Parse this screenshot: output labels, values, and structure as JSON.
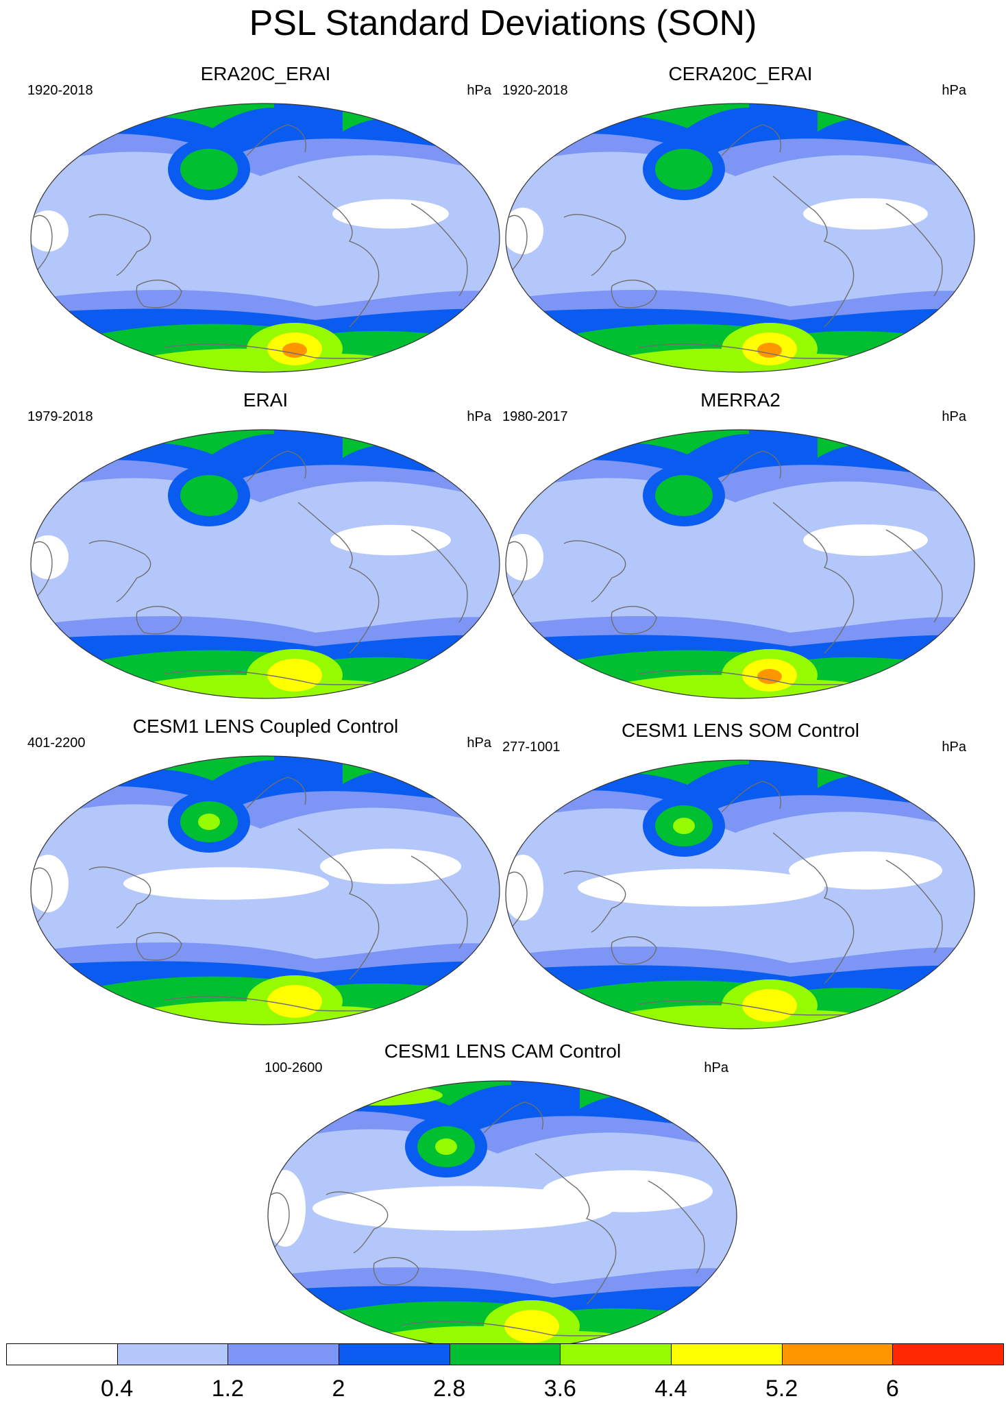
{
  "figure": {
    "title": "PSL Standard Deviations (SON)"
  },
  "colorbar": {
    "colors": [
      "#ffffff",
      "#b4c7fa",
      "#7d96f5",
      "#0a5cf0",
      "#00c032",
      "#96fa00",
      "#ffff00",
      "#ff9600",
      "#ff2800"
    ],
    "labels": [
      "0.4",
      "1.2",
      "2",
      "2.8",
      "3.6",
      "4.4",
      "5.2",
      "6"
    ]
  },
  "panels": [
    {
      "title": "ERA20C_ERAI",
      "years": "1920-2018",
      "unit": "hPa",
      "field": {
        "arctic_core": 3,
        "south_band": 3,
        "south_hot": 5,
        "south_peak": 7,
        "tropic_white": 0.25
      }
    },
    {
      "title": "CERA20C_ERAI",
      "years": "1920-2018",
      "unit": "hPa",
      "field": {
        "arctic_core": 3,
        "south_band": 3,
        "south_hot": 5,
        "south_peak": 7,
        "tropic_white": 0.35
      }
    },
    {
      "title": "ERAI",
      "years": "1979-2018",
      "unit": "hPa",
      "field": {
        "arctic_core": 3,
        "south_band": 3,
        "south_hot": 6,
        "south_peak": 6,
        "tropic_white": 0.3
      }
    },
    {
      "title": "MERRA2",
      "years": "1980-2017",
      "unit": "hPa",
      "field": {
        "arctic_core": 3,
        "south_band": 3,
        "south_hot": 6,
        "south_peak": 7,
        "tropic_white": 0.35
      }
    },
    {
      "title": "CESM1 LENS Coupled Control",
      "years": "401-2200",
      "unit": "hPa",
      "field": {
        "arctic_core": 4,
        "south_band": 3,
        "south_hot": 5,
        "south_peak": 6,
        "tropic_white": 0.55
      }
    },
    {
      "title": "CESM1 LENS SOM Control",
      "years": "277-1001",
      "unit": "hPa",
      "field": {
        "arctic_core": 4,
        "south_band": 3,
        "south_hot": 5,
        "south_peak": 6,
        "tropic_white": 0.7
      }
    },
    {
      "title": "CESM1 LENS CAM Control",
      "years": "100-2600",
      "unit": "hPa",
      "field": {
        "arctic_core": 5,
        "south_band": 3,
        "south_hot": 5,
        "south_peak": 6,
        "tropic_white": 0.9
      }
    }
  ]
}
